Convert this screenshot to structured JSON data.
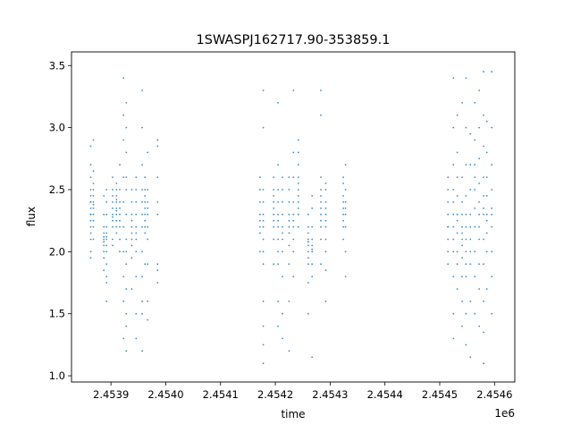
{
  "chart_data": {
    "type": "scatter",
    "title": "1SWASPJ162717.90-353859.1",
    "xlabel": "time",
    "ylabel": "flux",
    "x_offset_label": "1e6",
    "xlim": [
      2453828,
      2454637
    ],
    "ylim": [
      0.95,
      3.61
    ],
    "x_ticks": [
      2453900,
      2454000,
      2454100,
      2454200,
      2454300,
      2454400,
      2454500,
      2454600
    ],
    "x_tick_labels": [
      "2.4539",
      "2.4540",
      "2.4541",
      "2.4542",
      "2.4543",
      "2.4544",
      "2.4545",
      "2.4546"
    ],
    "y_ticks": [
      1.0,
      1.5,
      2.0,
      2.5,
      3.0,
      3.5
    ],
    "y_tick_labels": [
      "1.0",
      "1.5",
      "2.0",
      "2.5",
      "3.0",
      "3.5"
    ],
    "grid": false,
    "color": "#1f77b4",
    "columns": [
      {
        "x": 2453863,
        "y": [
          2.1,
          2.2,
          2.25,
          2.3,
          2.35,
          2.4,
          2.45,
          2.5,
          2.6,
          2.7,
          2.85,
          2.0,
          1.95,
          2.15,
          2.3,
          2.4
        ]
      },
      {
        "x": 2453868,
        "y": [
          2.2,
          2.3,
          2.35,
          2.4,
          2.45,
          2.55,
          2.65,
          2.9,
          2.1,
          2.25,
          2.38,
          2.5
        ]
      },
      {
        "x": 2453887,
        "y": [
          1.95,
          2.0,
          2.05,
          2.1,
          2.15,
          2.2,
          2.3,
          2.45,
          1.85,
          2.08,
          2.12
        ]
      },
      {
        "x": 2453892,
        "y": [
          1.8,
          1.9,
          2.0,
          2.05,
          2.1,
          2.15,
          2.2,
          2.3,
          2.4,
          2.5,
          1.6,
          1.75,
          2.12
        ]
      },
      {
        "x": 2453903,
        "y": [
          2.1,
          2.2,
          2.25,
          2.3,
          2.35,
          2.4,
          2.45,
          2.5,
          2.05,
          2.28,
          2.6
        ]
      },
      {
        "x": 2453910,
        "y": [
          2.15,
          2.2,
          2.3,
          2.35,
          2.4,
          2.45,
          2.5,
          2.55,
          2.25,
          2.33,
          2.42
        ]
      },
      {
        "x": 2453916,
        "y": [
          2.0,
          2.1,
          2.2,
          2.3,
          2.4,
          2.5,
          2.7,
          2.25,
          2.35
        ]
      },
      {
        "x": 2453923,
        "y": [
          1.3,
          1.6,
          1.8,
          2.0,
          2.2,
          2.4,
          2.6,
          2.9,
          3.1,
          3.4
        ]
      },
      {
        "x": 2453928,
        "y": [
          1.2,
          1.5,
          1.7,
          1.9,
          2.1,
          2.3,
          2.5,
          2.8,
          3.0,
          3.2,
          1.4,
          2.0,
          2.6
        ]
      },
      {
        "x": 2453938,
        "y": [
          1.95,
          2.05,
          2.1,
          2.15,
          2.2,
          2.25,
          2.3,
          2.4,
          2.5,
          1.7
        ]
      },
      {
        "x": 2453946,
        "y": [
          2.0,
          2.1,
          2.15,
          2.2,
          2.3,
          2.4,
          2.5,
          2.6,
          1.8,
          1.5,
          1.3
        ]
      },
      {
        "x": 2453957,
        "y": [
          1.2,
          1.5,
          1.8,
          2.0,
          2.2,
          2.3,
          2.4,
          2.5,
          2.7,
          3.0,
          3.3,
          1.6
        ]
      },
      {
        "x": 2453962,
        "y": [
          2.2,
          2.25,
          2.3,
          2.35,
          2.4,
          2.45,
          2.5,
          2.15,
          2.6,
          1.9
        ]
      },
      {
        "x": 2453967,
        "y": [
          1.6,
          1.9,
          2.1,
          2.2,
          2.3,
          2.4,
          2.5,
          2.8,
          2.35,
          1.45
        ]
      },
      {
        "x": 2453985,
        "y": [
          1.75,
          1.85,
          1.9,
          2.3,
          2.4,
          2.6,
          2.85,
          2.9
        ]
      },
      {
        "x": 2454172,
        "y": [
          2.0,
          2.15,
          2.2,
          2.3,
          2.4,
          2.5,
          2.6,
          2.25
        ]
      },
      {
        "x": 2454178,
        "y": [
          1.1,
          1.25,
          1.4,
          1.6,
          1.9,
          2.0,
          2.1,
          2.2,
          2.25,
          2.3,
          2.4,
          2.5,
          3.0,
          3.3
        ]
      },
      {
        "x": 2454197,
        "y": [
          2.1,
          2.2,
          2.3,
          2.35,
          2.4,
          2.45,
          2.5,
          2.6,
          1.9,
          2.25
        ]
      },
      {
        "x": 2454205,
        "y": [
          1.6,
          1.9,
          2.0,
          2.1,
          2.2,
          2.25,
          2.3,
          2.4,
          2.5,
          2.7,
          1.4,
          3.2
        ]
      },
      {
        "x": 2454213,
        "y": [
          1.5,
          1.8,
          2.0,
          2.1,
          2.2,
          2.3,
          2.4,
          2.5,
          2.6,
          1.3,
          2.15
        ]
      },
      {
        "x": 2454225,
        "y": [
          1.6,
          1.9,
          2.05,
          2.15,
          2.2,
          2.3,
          2.4,
          2.5,
          2.6,
          1.2,
          2.25
        ]
      },
      {
        "x": 2454233,
        "y": [
          1.8,
          2.0,
          2.1,
          2.2,
          2.3,
          2.4,
          2.6,
          2.8,
          3.3,
          2.25
        ]
      },
      {
        "x": 2454242,
        "y": [
          2.2,
          2.3,
          2.4,
          2.5,
          2.55,
          2.6,
          2.7,
          2.8,
          2.45,
          2.35,
          2.9
        ]
      },
      {
        "x": 2454260,
        "y": [
          1.75,
          1.9,
          1.95,
          2.0,
          2.05,
          2.1,
          2.15,
          2.2,
          2.3,
          1.5,
          2.08
        ]
      },
      {
        "x": 2454267,
        "y": [
          1.8,
          1.9,
          2.0,
          2.05,
          2.1,
          2.2,
          2.35,
          2.45,
          1.15,
          2.02
        ]
      },
      {
        "x": 2454283,
        "y": [
          2.1,
          2.2,
          2.3,
          2.35,
          2.4,
          2.45,
          2.5,
          2.6,
          3.1,
          3.3,
          1.9,
          2.25
        ]
      },
      {
        "x": 2454292,
        "y": [
          1.85,
          2.0,
          2.1,
          2.2,
          2.25,
          2.3,
          2.35,
          2.4,
          2.5,
          2.55,
          1.6
        ]
      },
      {
        "x": 2454324,
        "y": [
          2.1,
          2.2,
          2.3,
          2.35,
          2.4,
          2.45,
          2.55,
          2.25,
          2.6
        ]
      },
      {
        "x": 2454328,
        "y": [
          1.8,
          2.0,
          2.2,
          2.3,
          2.35,
          2.4,
          2.5,
          2.7
        ]
      },
      {
        "x": 2454515,
        "y": [
          2.0,
          2.1,
          2.2,
          2.3,
          2.4,
          2.5,
          2.6,
          2.2,
          1.9
        ]
      },
      {
        "x": 2454525,
        "y": [
          1.5,
          1.8,
          2.0,
          2.1,
          2.2,
          2.3,
          2.4,
          2.5,
          2.7,
          3.0,
          3.4,
          1.3
        ]
      },
      {
        "x": 2454532,
        "y": [
          1.7,
          1.9,
          2.0,
          2.15,
          2.3,
          2.45,
          2.6,
          2.8,
          3.1,
          2.25
        ]
      },
      {
        "x": 2454541,
        "y": [
          1.6,
          1.8,
          1.95,
          2.05,
          2.1,
          2.15,
          2.2,
          2.3,
          2.4,
          2.6,
          3.2,
          1.4
        ]
      },
      {
        "x": 2454548,
        "y": [
          1.5,
          1.8,
          1.9,
          2.0,
          2.1,
          2.2,
          2.3,
          2.45,
          2.7,
          3.0,
          3.4,
          1.25
        ]
      },
      {
        "x": 2454556,
        "y": [
          1.6,
          1.9,
          2.0,
          2.1,
          2.2,
          2.3,
          2.5,
          2.7,
          2.95,
          1.15
        ]
      },
      {
        "x": 2454564,
        "y": [
          1.8,
          2.0,
          2.2,
          2.35,
          2.5,
          2.6,
          2.7,
          2.9,
          3.2,
          1.5
        ]
      },
      {
        "x": 2454572,
        "y": [
          1.4,
          1.7,
          1.9,
          2.1,
          2.3,
          2.4,
          2.55,
          2.75,
          3.0,
          3.3,
          2.2
        ]
      },
      {
        "x": 2454580,
        "y": [
          1.1,
          1.35,
          1.6,
          1.9,
          2.1,
          2.3,
          2.45,
          2.6,
          2.85,
          3.1,
          3.45,
          2.35
        ]
      },
      {
        "x": 2454586,
        "y": [
          1.7,
          2.0,
          2.15,
          2.3,
          2.45,
          2.6,
          2.8,
          3.05,
          2.25
        ]
      },
      {
        "x": 2454595,
        "y": [
          1.5,
          1.8,
          2.0,
          2.2,
          2.35,
          2.5,
          2.7,
          3.0,
          3.45,
          2.3
        ]
      }
    ]
  }
}
